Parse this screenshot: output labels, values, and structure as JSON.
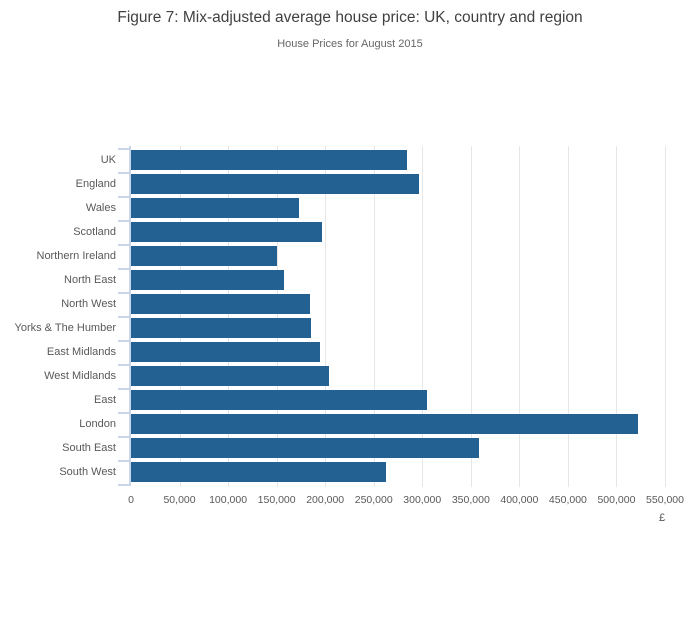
{
  "header": {
    "title": "Figure 7: Mix-adjusted average house price: UK, country and region",
    "subtitle": "House Prices for August 2015"
  },
  "chart_data": {
    "type": "bar",
    "orientation": "horizontal",
    "title": "Figure 7: Mix-adjusted average house price: UK, country and region",
    "subtitle": "House Prices for August 2015",
    "categories": [
      "UK",
      "England",
      "Wales",
      "Scotland",
      "Northern Ireland",
      "North East",
      "North West",
      "Yorks & The Humber",
      "East Midlands",
      "West Midlands",
      "East",
      "London",
      "South East",
      "South West"
    ],
    "values": [
      284000,
      297000,
      173000,
      197000,
      150000,
      158000,
      184000,
      185000,
      195000,
      204000,
      305000,
      522000,
      358000,
      263000
    ],
    "xlabel": "£",
    "ylabel": "",
    "xlim": [
      0,
      550000
    ],
    "x_ticks": [
      0,
      50000,
      100000,
      150000,
      200000,
      250000,
      300000,
      350000,
      400000,
      450000,
      500000,
      550000
    ],
    "x_tick_labels": [
      "0",
      "50,000",
      "100,000",
      "150,000",
      "200,000",
      "250,000",
      "300,000",
      "350,000",
      "400,000",
      "450,000",
      "500,000",
      "550,000"
    ],
    "grid": true,
    "legend": false,
    "bar_color": "#236192",
    "gridline_color": "#e6e6e6",
    "axis_color": "#c9d5e8",
    "label_color": "#595959",
    "title_color": "#414141"
  }
}
